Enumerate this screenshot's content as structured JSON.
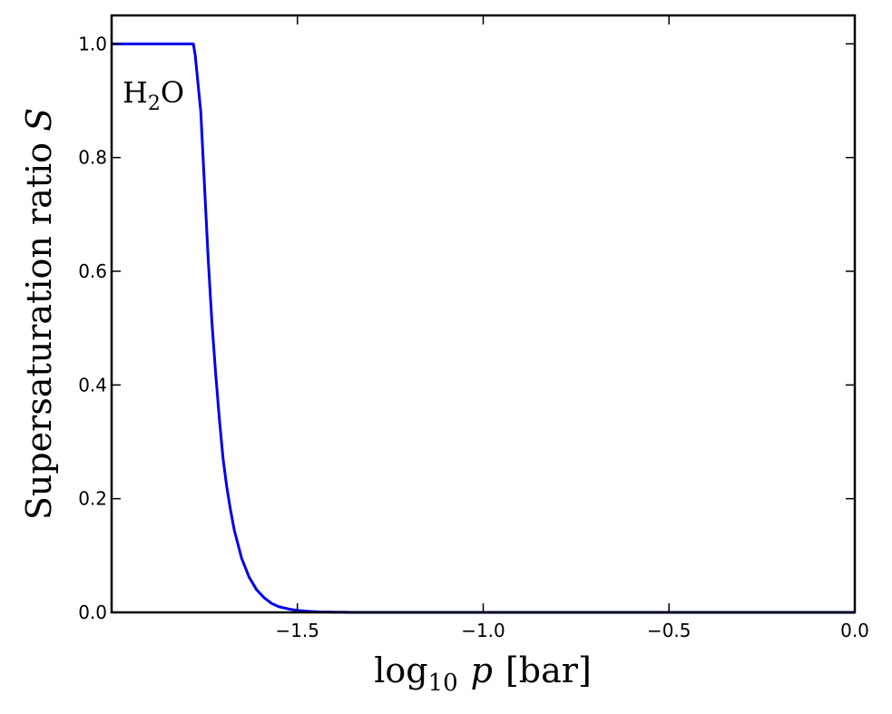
{
  "chart_data": {
    "type": "line",
    "xlabel": {
      "pre": "log",
      "sub": "10",
      "var": "p",
      "unit": "[bar]"
    },
    "ylabel": {
      "text": "Supersaturation ratio ",
      "var": "S"
    },
    "annotation": {
      "main": "H",
      "sub": "2",
      "rest": "O"
    },
    "xlim": [
      -2.0,
      0.0
    ],
    "ylim": [
      0.0,
      1.05
    ],
    "xticks": [
      -1.5,
      -1.0,
      -0.5,
      0.0
    ],
    "xtick_labels": [
      "−1.5",
      "−1.0",
      "−0.5",
      "0.0"
    ],
    "yticks": [
      0.0,
      0.2,
      0.4,
      0.6,
      0.8,
      1.0
    ],
    "ytick_labels": [
      "0.0",
      "0.2",
      "0.4",
      "0.6",
      "0.8",
      "1.0"
    ],
    "grid": false,
    "series": [
      {
        "color": "#0000ee",
        "x": [
          -2.0,
          -1.78,
          -1.775,
          -1.76,
          -1.75,
          -1.74,
          -1.73,
          -1.72,
          -1.71,
          -1.7,
          -1.69,
          -1.68,
          -1.67,
          -1.65,
          -1.63,
          -1.61,
          -1.59,
          -1.57,
          -1.55,
          -1.52,
          -1.5,
          -1.47,
          -1.44,
          -1.4,
          -1.35,
          -1.3,
          -1.2,
          -1.0,
          -0.5,
          0.0
        ],
        "y": [
          1.0,
          1.0,
          0.98,
          0.88,
          0.75,
          0.62,
          0.51,
          0.42,
          0.34,
          0.27,
          0.22,
          0.18,
          0.145,
          0.095,
          0.062,
          0.04,
          0.026,
          0.016,
          0.01,
          0.0055,
          0.0035,
          0.0018,
          0.0009,
          0.0003,
          0.0001,
          3e-05,
          0.0,
          0.0,
          0.0,
          0.0
        ]
      }
    ]
  }
}
